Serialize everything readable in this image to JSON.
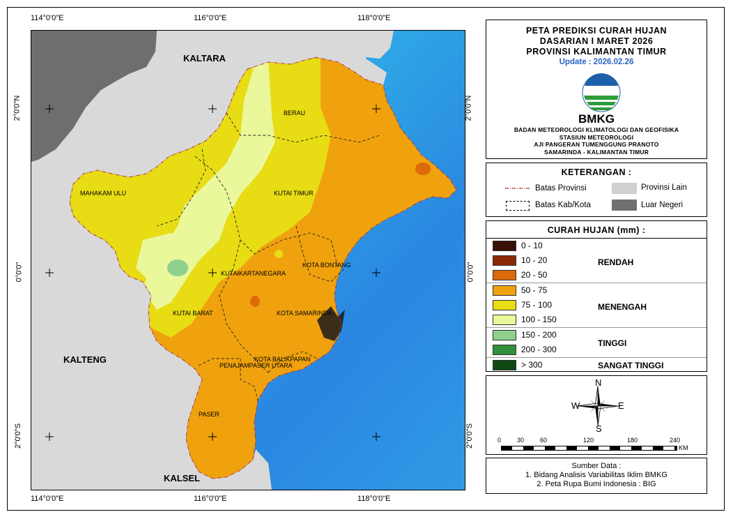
{
  "map": {
    "coords_top": [
      "114°0'0\"E",
      "116°0'0\"E",
      "118°0'0\"E"
    ],
    "coords_bottom": [
      "114°0'0\"E",
      "116°0'0\"E",
      "118°0'0\"E"
    ],
    "coords_left": [
      "2°0'0\"N",
      "0°0'0\"",
      "2°0'0\"S"
    ],
    "coords_right": [
      "2°0'0\"N",
      "0°0'0\"",
      "2°0'0\"S"
    ],
    "regions": {
      "kaltara": "KALTARA",
      "kalteng": "KALTENG",
      "kalsel": "KALSEL",
      "berau": "BERAU",
      "mahakam_ulu": "MAHAKAM ULU",
      "kutai_timur": "KUTAI TIMUR",
      "kota_bontang": "KOTA BONTANG",
      "kutai_kartanegara": "KUTAIKARTANEGARA",
      "kutai_barat": "KUTAI BARAT",
      "kota_samarinda": "KOTA SAMARINDA",
      "kota_balikpapan": "KOTA BALIKPAPAN",
      "penajam": "PENAJAMPASER UTARA",
      "paser": "PASER"
    }
  },
  "title": {
    "line1": "PETA PREDIKSI CURAH HUJAN",
    "line2": "DASARIAN I MARET 2026",
    "line3": "PROVINSI KALIMANTAN TIMUR",
    "update": "Update : 2026.02.26",
    "logo_text": "BMKG",
    "agency1": "BADAN METEOROLOGI KLIMATOLOGI DAN GEOFISIKA",
    "agency2": "STASIUN METEOROLOGI",
    "agency3": "AJI PANGERAN TUMENGGUNG PRANOTO",
    "agency4": "SAMARINDA - KALIMANTAN TIMUR"
  },
  "keterangan": {
    "title": "KETERANGAN :",
    "batas_provinsi": "Batas Provinsi",
    "batas_kab": "Batas Kab/Kota",
    "provinsi_lain": "Provinsi Lain",
    "luar_negeri": "Luar Negeri"
  },
  "curah_hujan": {
    "title": "CURAH HUJAN (mm) :",
    "classes": [
      {
        "range": "0 - 10",
        "color": "#3a0f06"
      },
      {
        "range": "10 - 20",
        "color": "#8a2a05"
      },
      {
        "range": "20 - 50",
        "color": "#dd6a0a"
      },
      {
        "range": "50 - 75",
        "color": "#efa20e"
      },
      {
        "range": "75 - 100",
        "color": "#e8dc14"
      },
      {
        "range": "100 - 150",
        "color": "#eaf79a"
      },
      {
        "range": "150 - 200",
        "color": "#8fd08f"
      },
      {
        "range": "200 - 300",
        "color": "#2f8f3a"
      },
      {
        "range": "> 300",
        "color": "#0f4a14"
      }
    ],
    "categories": {
      "rendah": "RENDAH",
      "menengah": "MENENGAH",
      "tinggi": "TINGGI",
      "sangat_tinggi": "SANGAT TINGGI"
    }
  },
  "compass": {
    "n": "N",
    "s": "S",
    "e": "E",
    "w": "W"
  },
  "scale": {
    "ticks": [
      "0",
      "30",
      "60",
      "120",
      "180",
      "240"
    ],
    "unit": "KM"
  },
  "source": {
    "title": "Sumber Data :",
    "line1": "1. Bidang Analisis Variabilitas Iklim BMKG",
    "line2": "2. Peta Rupa Bumi Indonesia : BIG"
  }
}
